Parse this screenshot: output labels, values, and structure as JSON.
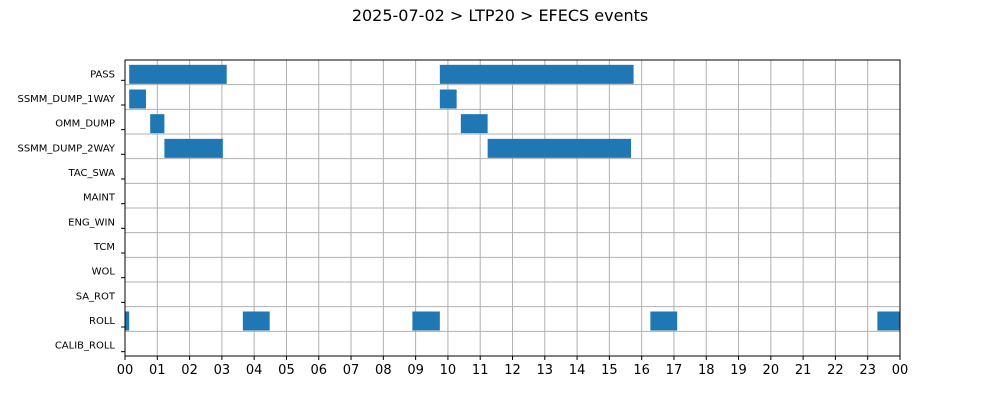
{
  "chart_data": {
    "type": "gantt",
    "title": "2025-07-02 > LTP20 > EFECS events",
    "xlabel": "",
    "ylabel": "",
    "grid": true,
    "x_unit": "hour",
    "xlim": [
      0,
      24
    ],
    "x_tick_labels": [
      "00",
      "01",
      "02",
      "03",
      "04",
      "05",
      "06",
      "07",
      "08",
      "09",
      "10",
      "11",
      "12",
      "13",
      "14",
      "15",
      "16",
      "17",
      "18",
      "19",
      "20",
      "21",
      "22",
      "23",
      "00"
    ],
    "categories": [
      "PASS",
      "SSMM_DUMP_1WAY",
      "OMM_DUMP",
      "SSMM_DUMP_2WAY",
      "TAC_SWA",
      "MAINT",
      "ENG_WIN",
      "TCM",
      "WOL",
      "SA_ROT",
      "ROLL",
      "CALIB_ROLL"
    ],
    "bar_color": "#1f77b4",
    "events": [
      {
        "category": "PASS",
        "start": 0.13,
        "end": 3.15
      },
      {
        "category": "PASS",
        "start": 9.75,
        "end": 15.75
      },
      {
        "category": "SSMM_DUMP_1WAY",
        "start": 0.13,
        "end": 0.65
      },
      {
        "category": "SSMM_DUMP_1WAY",
        "start": 9.75,
        "end": 10.27
      },
      {
        "category": "OMM_DUMP",
        "start": 0.78,
        "end": 1.22
      },
      {
        "category": "OMM_DUMP",
        "start": 10.4,
        "end": 11.23
      },
      {
        "category": "SSMM_DUMP_2WAY",
        "start": 1.22,
        "end": 3.03
      },
      {
        "category": "SSMM_DUMP_2WAY",
        "start": 11.23,
        "end": 15.67
      },
      {
        "category": "ROLL",
        "start": 0.0,
        "end": 0.13
      },
      {
        "category": "ROLL",
        "start": 3.65,
        "end": 4.48
      },
      {
        "category": "ROLL",
        "start": 8.9,
        "end": 9.75
      },
      {
        "category": "ROLL",
        "start": 16.27,
        "end": 17.1
      },
      {
        "category": "ROLL",
        "start": 23.3,
        "end": 24.0
      }
    ]
  }
}
